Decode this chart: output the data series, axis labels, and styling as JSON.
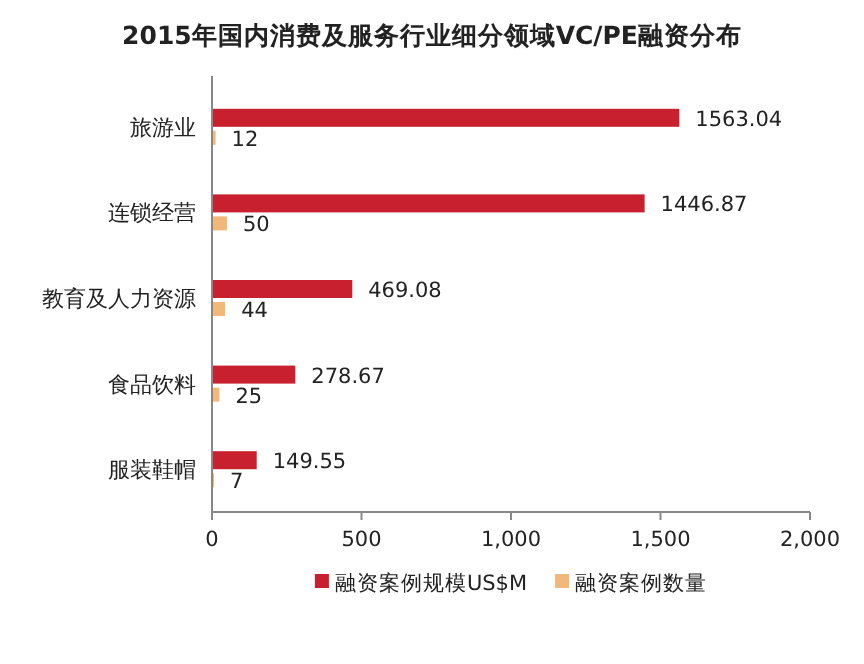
{
  "chart_data": {
    "type": "bar",
    "orientation": "horizontal",
    "title": "2015年国内消费及服务行业细分领域VC/PE融资分布",
    "categories": [
      "旅游业",
      "连锁经营",
      "教育及人力资源",
      "食品饮料",
      "服装鞋帽"
    ],
    "series": [
      {
        "name": "融资案例规模US$M",
        "color": "#c8202e",
        "values": [
          1563.04,
          1446.87,
          469.08,
          278.67,
          149.55
        ]
      },
      {
        "name": "融资案例数量",
        "color": "#f2b879",
        "values": [
          12,
          50,
          44,
          25,
          7
        ]
      }
    ],
    "xlim": [
      0,
      2000
    ],
    "xticks": [
      0,
      500,
      {
        "value": 1000,
        "label": "1,000"
      },
      {
        "value": 1500,
        "label": "1,500"
      },
      {
        "value": 2000,
        "label": "2,000"
      }
    ],
    "data_labels": true,
    "legend": "bottom",
    "grid": false
  }
}
